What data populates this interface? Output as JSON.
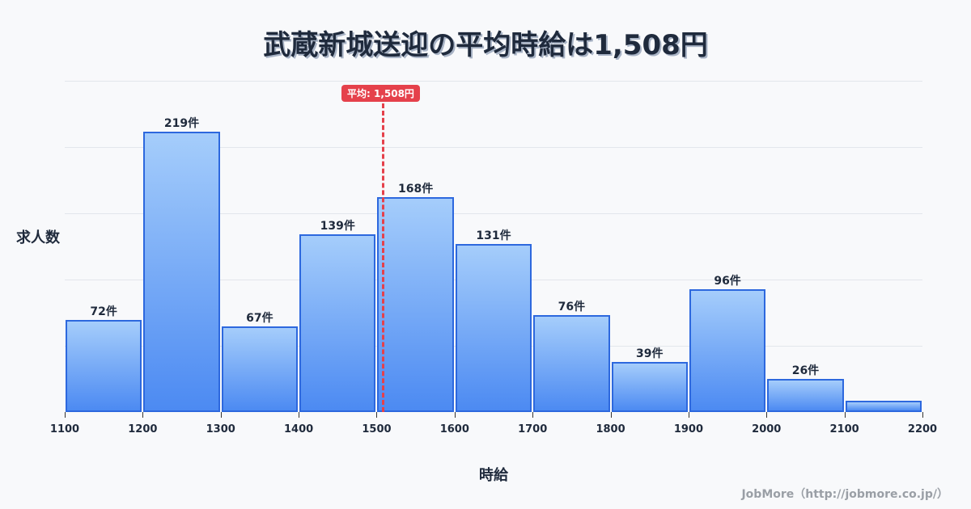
{
  "header": {
    "title": "武蔵新城送迎の平均時給は1,508円"
  },
  "axes": {
    "ylabel": "求人数",
    "xlabel": "時給"
  },
  "mean": {
    "label": "平均: 1,508円",
    "value": 1508,
    "color": "#e5414b"
  },
  "footer": {
    "credit": "JobMore（http://jobmore.co.jp/）"
  },
  "colors": {
    "bar_top": "#a5cdfb",
    "bar_bottom": "#4c8af2",
    "bar_border": "#2d68de"
  },
  "chart_data": {
    "type": "bar",
    "title": "武蔵新城送迎の平均時給は1,508円",
    "xlabel": "時給",
    "ylabel": "求人数",
    "bins": [
      [
        1100,
        1200
      ],
      [
        1200,
        1300
      ],
      [
        1300,
        1400
      ],
      [
        1400,
        1500
      ],
      [
        1500,
        1600
      ],
      [
        1600,
        1700
      ],
      [
        1700,
        1800
      ],
      [
        1800,
        1900
      ],
      [
        1900,
        2000
      ],
      [
        2000,
        2100
      ],
      [
        2100,
        2200
      ]
    ],
    "categories": [
      "1100-1200",
      "1200-1300",
      "1300-1400",
      "1400-1500",
      "1500-1600",
      "1600-1700",
      "1700-1800",
      "1800-1900",
      "1900-2000",
      "2000-2100",
      "2100-2200"
    ],
    "values": [
      72,
      219,
      67,
      139,
      168,
      131,
      76,
      39,
      96,
      26,
      9
    ],
    "labels": [
      "72件",
      "219件",
      "67件",
      "139件",
      "168件",
      "131件",
      "76件",
      "39件",
      "96件",
      "26件",
      ""
    ],
    "x_ticks": [
      "1100",
      "1200",
      "1300",
      "1400",
      "1500",
      "1600",
      "1700",
      "1800",
      "1900",
      "2000",
      "2100",
      "2200"
    ],
    "xlim": [
      1100,
      2200
    ],
    "ylim": [
      0,
      260
    ],
    "grid": true,
    "mean_line": 1508
  }
}
